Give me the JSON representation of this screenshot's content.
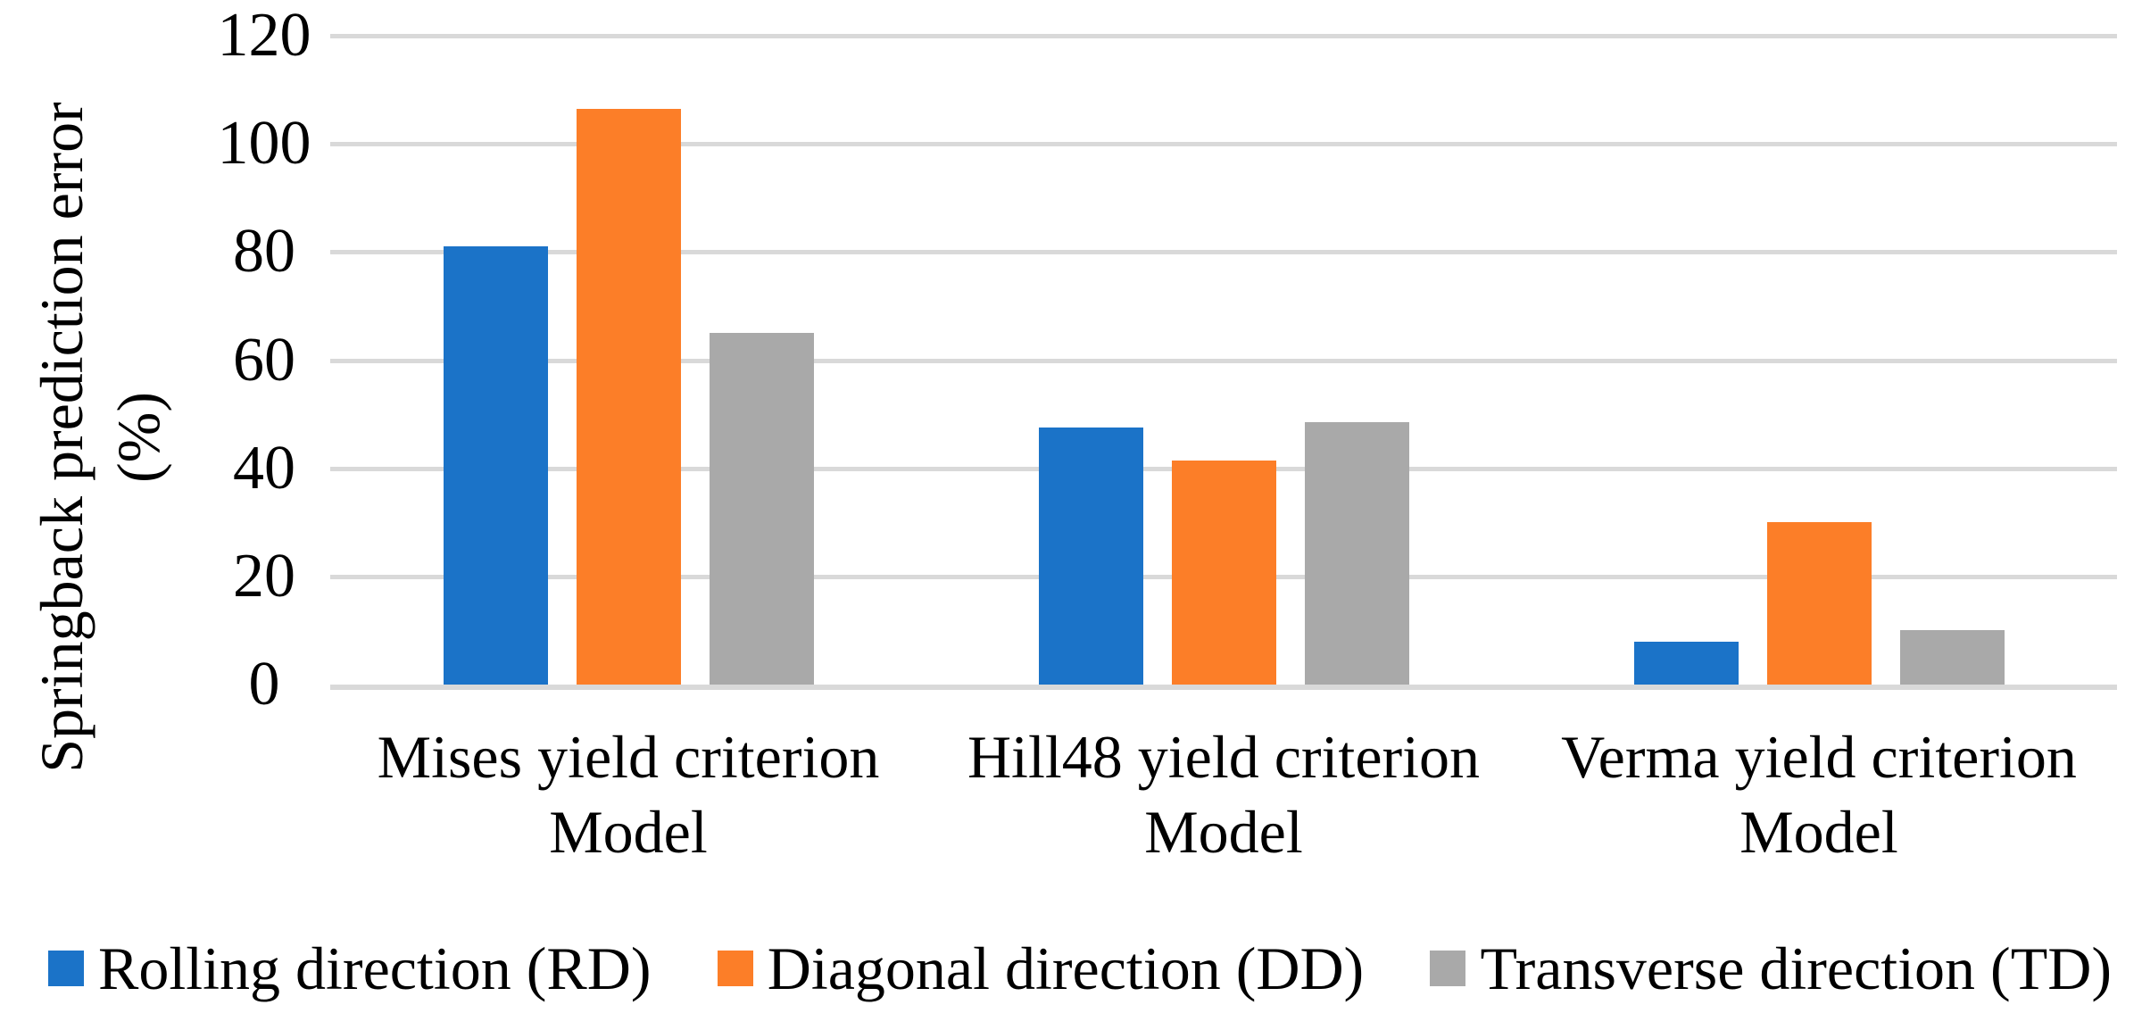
{
  "chart_data": {
    "type": "bar",
    "title": "",
    "y_axis": {
      "label_line1": "Springback prediction error",
      "label_line2": "(%)",
      "min": 0,
      "max": 120,
      "tick_interval": 20,
      "ticks": [
        120,
        100,
        80,
        60,
        40,
        20,
        0
      ]
    },
    "categories": [
      {
        "line1": "Mises yield criterion",
        "line2": "Model"
      },
      {
        "line1": "Hill48 yield criterion",
        "line2": "Model"
      },
      {
        "line1": "Verma yield criterion",
        "line2": "Model"
      }
    ],
    "series": [
      {
        "name": "Rolling direction (RD)",
        "color": "#1B73C8",
        "values": [
          81,
          47.5,
          8
        ]
      },
      {
        "name": "Diagonal direction (DD)",
        "color": "#FC7E28",
        "values": [
          106.5,
          41.5,
          30
        ]
      },
      {
        "name": "Transverse direction (TD)",
        "color": "#A9A9A9",
        "values": [
          65,
          48.5,
          10
        ]
      }
    ],
    "legend_position": "bottom",
    "grid": true,
    "gridline_color": "#D9D9D9",
    "axis_line_color": "#D9D9D9",
    "background_color": "#FFFFFF",
    "text_color": "#000000"
  }
}
